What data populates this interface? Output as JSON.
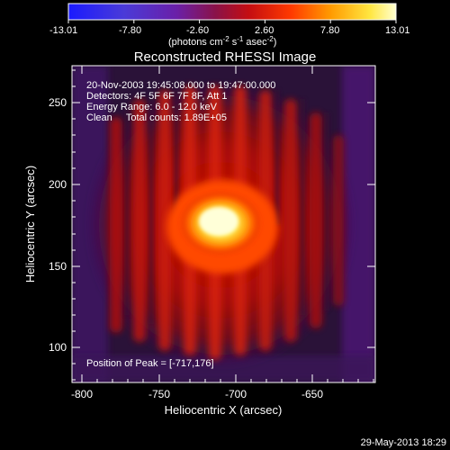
{
  "colorbar": {
    "ticks": [
      "-13.01",
      "-7.80",
      "-2.60",
      "2.60",
      "7.80",
      "13.01"
    ],
    "unit_main": "(photons cm",
    "unit_sup1": "-2",
    "unit_mid": " s",
    "unit_sup2": "-1",
    "unit_mid2": " asec",
    "unit_sup3": "-2",
    "unit_end": ")"
  },
  "plot": {
    "title": "Reconstructed RHESSI Image",
    "info_lines": [
      "20-Nov-2003 19:45:08.000 to 19:47:00.000",
      "Detectors: 4F 5F 6F 7F 8F, Att 1",
      "Energy Range: 6.0 - 12.0 keV",
      "Clean     Total counts: 1.89E+05"
    ],
    "peak_label": "Position of Peak = [-717,176]",
    "xlabel": "Heliocentric X (arcsec)",
    "ylabel": "Heliocentric Y (arcsec)",
    "x_ticks": [
      "-800",
      "-750",
      "-700",
      "-650"
    ],
    "y_ticks": [
      "100",
      "150",
      "200",
      "250"
    ],
    "x_range": [
      -810,
      -613
    ],
    "y_range": [
      80,
      273
    ],
    "peak": [
      -717,
      176
    ]
  },
  "footer": {
    "date": "29-May-2013 18:29"
  }
}
